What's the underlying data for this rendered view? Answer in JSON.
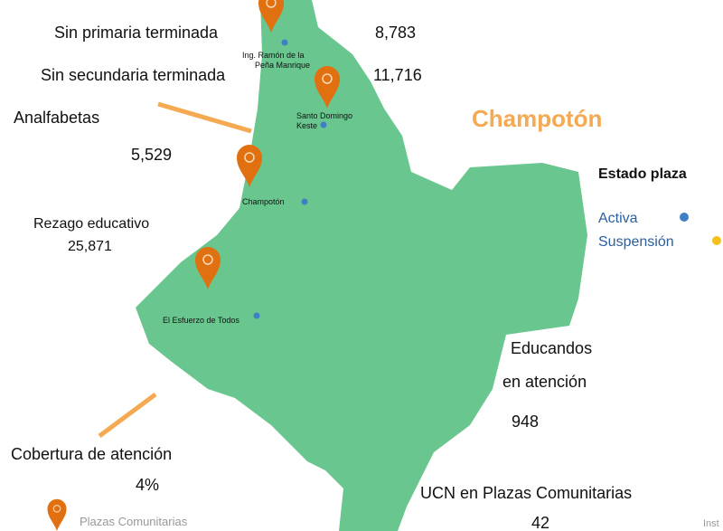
{
  "title": "Champotón",
  "stats": [
    {
      "label": "Sin primaria terminada",
      "value": "8,783"
    },
    {
      "label": "Sin secundaria terminada",
      "value": "11,716"
    },
    {
      "label": "Analfabetas",
      "value": "5,529"
    },
    {
      "label": "Rezago educativo",
      "value": "25,871"
    },
    {
      "label": "Educandos",
      "label2": "en atención",
      "value": "948"
    },
    {
      "label": "Cobertura de atención",
      "value": "4%"
    },
    {
      "label": "UCN en Plazas Comunitarias",
      "value": "42"
    }
  ],
  "places": [
    {
      "line1": "Ing. Ramón de la",
      "line2": "Peña Manrique"
    },
    {
      "line1": "Santo Domingo",
      "line2": "Keste"
    },
    {
      "line1": "Champotón"
    },
    {
      "line1": "El Esfuerzo de Todos"
    }
  ],
  "legend": {
    "title": "Estado plaza",
    "items": [
      "Activa",
      "Suspensión"
    ],
    "pin_label": "Plazas Comunitarias"
  },
  "footer": "Inst"
}
